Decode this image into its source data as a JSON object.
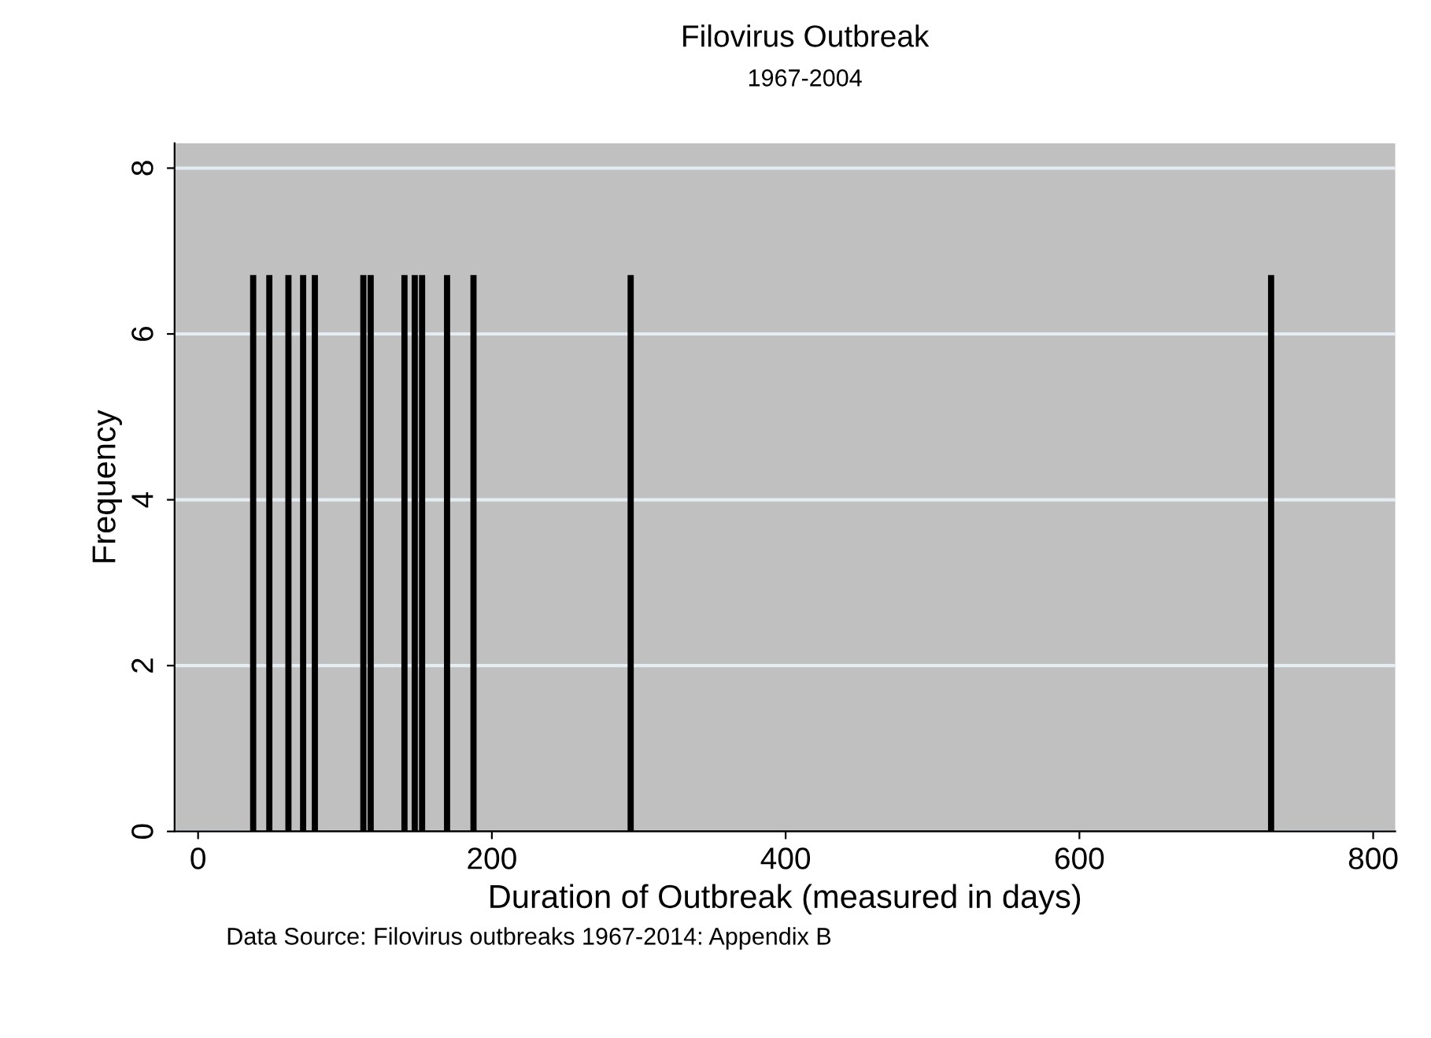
{
  "chart_data": {
    "type": "histogram",
    "title": "Filovirus Outbreak",
    "subtitle": "1967-2004",
    "xlabel": "Duration of Outbreak (measured in days)",
    "ylabel": "Frequency",
    "annotations": [
      "Data Source: Filovirus outbreaks 1967-2014: Appendix B"
    ],
    "bins": [
      36,
      39,
      47,
      50,
      60,
      63,
      70,
      73,
      78,
      81,
      111,
      114,
      116,
      119,
      139,
      142,
      146,
      149,
      151,
      154,
      168,
      171,
      186,
      189,
      293,
      296,
      729,
      732
    ],
    "values": [
      6.7,
      0,
      6.7,
      0,
      6.7,
      0,
      6.7,
      0,
      6.7,
      0,
      6.7,
      0,
      6.7,
      0,
      6.7,
      0,
      6.7,
      0,
      6.7,
      0,
      6.7,
      0,
      6.7,
      0,
      6.7,
      0,
      6.7
    ],
    "color": "#000000",
    "xlim": [
      -16,
      815
    ],
    "ylim": [
      0,
      8.3
    ],
    "xticks": [
      0,
      200,
      400,
      600,
      800
    ],
    "yticks": [
      0,
      2,
      4,
      6,
      8
    ],
    "grid": "y"
  }
}
